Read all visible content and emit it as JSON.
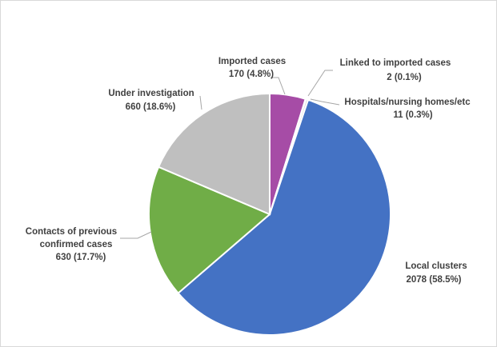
{
  "chart_data": {
    "type": "pie",
    "title": "",
    "legend": "none",
    "series": [
      {
        "values": [
          170,
          2,
          11,
          2078,
          630,
          660
        ],
        "categories": [
          "Imported cases",
          "Linked to imported cases",
          "Hospitals/nursing homes/etc",
          "Local clusters",
          "Contacts of previous confirmed cases",
          "Under investigation"
        ],
        "colors": [
          "#a64ca6",
          "#f2c18a",
          "#d9d9d9",
          "#4472c4",
          "#70ad47",
          "#bfbfbf"
        ]
      }
    ],
    "data_labels": [
      {
        "line1": "Imported cases",
        "line2": "170 (4.8%)"
      },
      {
        "line1": "Linked to imported cases",
        "line2": "2 (0.1%)"
      },
      {
        "line1": "Hospitals/nursing  homes/etc",
        "line2": "11 (0.3%)"
      },
      {
        "line1": "Local clusters",
        "line2": "2078 (58.5%)"
      },
      {
        "line1": "Contacts of previous",
        "line1b": "confirmed cases",
        "line2": "630 (17.7%)"
      },
      {
        "line1": "Under investigation",
        "line2": "660 (18.6%)"
      }
    ]
  }
}
